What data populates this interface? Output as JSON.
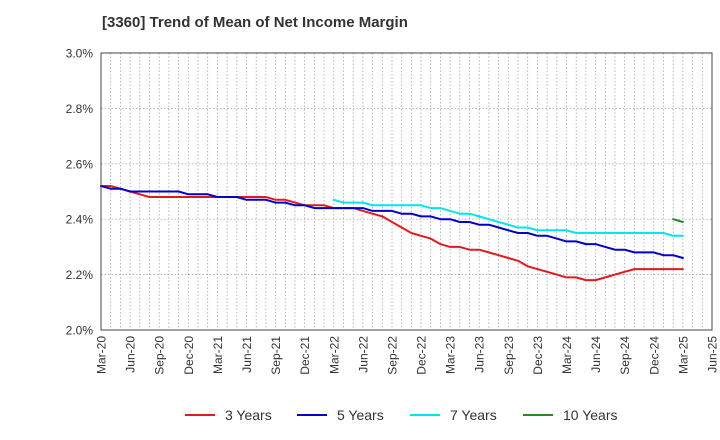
{
  "chart_data": {
    "type": "line",
    "title": "[3360]  Trend of Mean of Net Income Margin",
    "xlabel": "",
    "ylabel": "",
    "ylim": [
      2.0,
      3.0
    ],
    "y_ticks": [
      "3.0%",
      "2.8%",
      "2.6%",
      "2.4%",
      "2.2%",
      "2.0%"
    ],
    "y_tick_values": [
      3.0,
      2.8,
      2.6,
      2.4,
      2.2,
      2.0
    ],
    "x_ticks": [
      "Mar-20",
      "Jun-20",
      "Sep-20",
      "Dec-20",
      "Mar-21",
      "Jun-21",
      "Sep-21",
      "Dec-21",
      "Mar-22",
      "Jun-22",
      "Sep-22",
      "Dec-22",
      "Mar-23",
      "Jun-23",
      "Sep-23",
      "Dec-23",
      "Mar-24",
      "Jun-24",
      "Sep-24",
      "Dec-24",
      "Mar-25",
      "Jun-25"
    ],
    "grid": true,
    "legend_position": "bottom",
    "series": [
      {
        "name": "3 Years",
        "color": "#e31a1c",
        "values": [
          [
            0,
            2.52
          ],
          [
            1,
            2.52
          ],
          [
            2,
            2.51
          ],
          [
            3,
            2.5
          ],
          [
            4,
            2.49
          ],
          [
            5,
            2.48
          ],
          [
            6,
            2.48
          ],
          [
            7,
            2.48
          ],
          [
            8,
            2.48
          ],
          [
            9,
            2.48
          ],
          [
            10,
            2.48
          ],
          [
            11,
            2.48
          ],
          [
            12,
            2.48
          ],
          [
            13,
            2.48
          ],
          [
            14,
            2.48
          ],
          [
            15,
            2.48
          ],
          [
            16,
            2.48
          ],
          [
            17,
            2.48
          ],
          [
            18,
            2.47
          ],
          [
            19,
            2.47
          ],
          [
            20,
            2.46
          ],
          [
            21,
            2.45
          ],
          [
            22,
            2.45
          ],
          [
            23,
            2.45
          ],
          [
            24,
            2.44
          ],
          [
            25,
            2.44
          ],
          [
            26,
            2.44
          ],
          [
            27,
            2.43
          ],
          [
            28,
            2.42
          ],
          [
            29,
            2.41
          ],
          [
            30,
            2.39
          ],
          [
            31,
            2.37
          ],
          [
            32,
            2.35
          ],
          [
            33,
            2.34
          ],
          [
            34,
            2.33
          ],
          [
            35,
            2.31
          ],
          [
            36,
            2.3
          ],
          [
            37,
            2.3
          ],
          [
            38,
            2.29
          ],
          [
            39,
            2.29
          ],
          [
            40,
            2.28
          ],
          [
            41,
            2.27
          ],
          [
            42,
            2.26
          ],
          [
            43,
            2.25
          ],
          [
            44,
            2.23
          ],
          [
            45,
            2.22
          ],
          [
            46,
            2.21
          ],
          [
            47,
            2.2
          ],
          [
            48,
            2.19
          ],
          [
            49,
            2.19
          ],
          [
            50,
            2.18
          ],
          [
            51,
            2.18
          ],
          [
            52,
            2.19
          ],
          [
            53,
            2.2
          ],
          [
            54,
            2.21
          ],
          [
            55,
            2.22
          ],
          [
            56,
            2.22
          ],
          [
            57,
            2.22
          ],
          [
            58,
            2.22
          ],
          [
            59,
            2.22
          ],
          [
            60,
            2.22
          ]
        ]
      },
      {
        "name": "5 Years",
        "color": "#0000cc",
        "values": [
          [
            0,
            2.52
          ],
          [
            1,
            2.51
          ],
          [
            2,
            2.51
          ],
          [
            3,
            2.5
          ],
          [
            4,
            2.5
          ],
          [
            5,
            2.5
          ],
          [
            6,
            2.5
          ],
          [
            7,
            2.5
          ],
          [
            8,
            2.5
          ],
          [
            9,
            2.49
          ],
          [
            10,
            2.49
          ],
          [
            11,
            2.49
          ],
          [
            12,
            2.48
          ],
          [
            13,
            2.48
          ],
          [
            14,
            2.48
          ],
          [
            15,
            2.47
          ],
          [
            16,
            2.47
          ],
          [
            17,
            2.47
          ],
          [
            18,
            2.46
          ],
          [
            19,
            2.46
          ],
          [
            20,
            2.45
          ],
          [
            21,
            2.45
          ],
          [
            22,
            2.44
          ],
          [
            23,
            2.44
          ],
          [
            24,
            2.44
          ],
          [
            25,
            2.44
          ],
          [
            26,
            2.44
          ],
          [
            27,
            2.44
          ],
          [
            28,
            2.43
          ],
          [
            29,
            2.43
          ],
          [
            30,
            2.43
          ],
          [
            31,
            2.42
          ],
          [
            32,
            2.42
          ],
          [
            33,
            2.41
          ],
          [
            34,
            2.41
          ],
          [
            35,
            2.4
          ],
          [
            36,
            2.4
          ],
          [
            37,
            2.39
          ],
          [
            38,
            2.39
          ],
          [
            39,
            2.38
          ],
          [
            40,
            2.38
          ],
          [
            41,
            2.37
          ],
          [
            42,
            2.36
          ],
          [
            43,
            2.35
          ],
          [
            44,
            2.35
          ],
          [
            45,
            2.34
          ],
          [
            46,
            2.34
          ],
          [
            47,
            2.33
          ],
          [
            48,
            2.32
          ],
          [
            49,
            2.32
          ],
          [
            50,
            2.31
          ],
          [
            51,
            2.31
          ],
          [
            52,
            2.3
          ],
          [
            53,
            2.29
          ],
          [
            54,
            2.29
          ],
          [
            55,
            2.28
          ],
          [
            56,
            2.28
          ],
          [
            57,
            2.28
          ],
          [
            58,
            2.27
          ],
          [
            59,
            2.27
          ],
          [
            60,
            2.26
          ]
        ]
      },
      {
        "name": "7 Years",
        "color": "#00e5ee",
        "values": [
          [
            24,
            2.47
          ],
          [
            25,
            2.46
          ],
          [
            26,
            2.46
          ],
          [
            27,
            2.46
          ],
          [
            28,
            2.45
          ],
          [
            29,
            2.45
          ],
          [
            30,
            2.45
          ],
          [
            31,
            2.45
          ],
          [
            32,
            2.45
          ],
          [
            33,
            2.45
          ],
          [
            34,
            2.44
          ],
          [
            35,
            2.44
          ],
          [
            36,
            2.43
          ],
          [
            37,
            2.42
          ],
          [
            38,
            2.42
          ],
          [
            39,
            2.41
          ],
          [
            40,
            2.4
          ],
          [
            41,
            2.39
          ],
          [
            42,
            2.38
          ],
          [
            43,
            2.37
          ],
          [
            44,
            2.37
          ],
          [
            45,
            2.36
          ],
          [
            46,
            2.36
          ],
          [
            47,
            2.36
          ],
          [
            48,
            2.36
          ],
          [
            49,
            2.35
          ],
          [
            50,
            2.35
          ],
          [
            51,
            2.35
          ],
          [
            52,
            2.35
          ],
          [
            53,
            2.35
          ],
          [
            54,
            2.35
          ],
          [
            55,
            2.35
          ],
          [
            56,
            2.35
          ],
          [
            57,
            2.35
          ],
          [
            58,
            2.35
          ],
          [
            59,
            2.34
          ],
          [
            60,
            2.34
          ]
        ]
      },
      {
        "name": "10 Years",
        "color": "#228b22",
        "values": [
          [
            59,
            2.4
          ],
          [
            60,
            2.39
          ]
        ]
      }
    ]
  }
}
